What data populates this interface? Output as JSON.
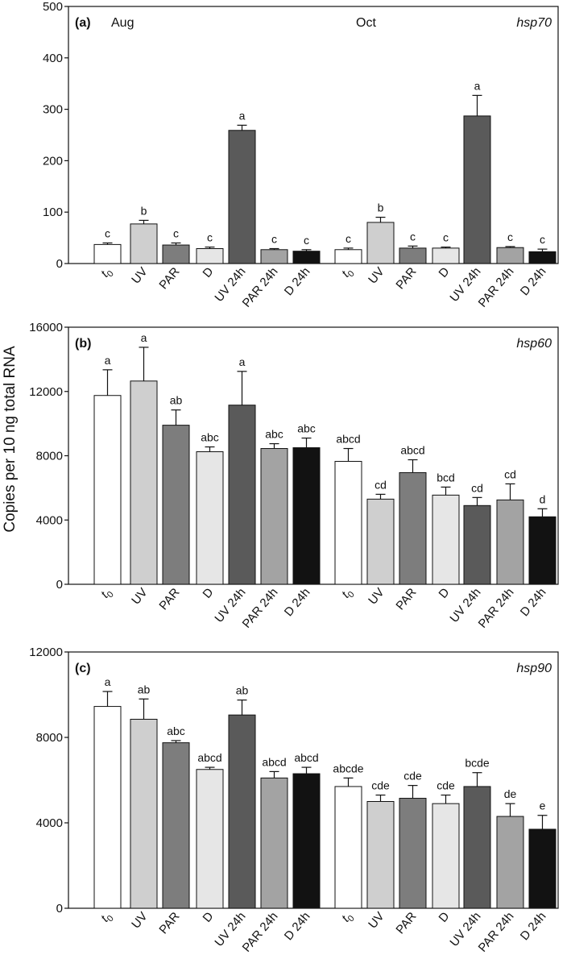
{
  "ylabel": "Copies per 10 ng total RNA",
  "colors": {
    "t0": "#ffffff",
    "UV": "#cfcfcf",
    "PAR": "#7d7d7d",
    "D": "#e6e6e6",
    "UV 24h": "#5a5a5a",
    "PAR 24h": "#a3a3a3",
    "D 24h": "#121212"
  },
  "chart_data": [
    {
      "type": "bar",
      "panel": "(a)",
      "gene": "hsp70",
      "months": [
        "Aug",
        "Oct"
      ],
      "categories": [
        "t0",
        "UV",
        "PAR",
        "D",
        "UV 24h",
        "PAR 24h",
        "D 24h",
        "t0",
        "UV",
        "PAR",
        "D",
        "UV 24h",
        "PAR 24h",
        "D 24h"
      ],
      "values": [
        37,
        77,
        36,
        29,
        259,
        27,
        24,
        27,
        80,
        30,
        30,
        287,
        31,
        23
      ],
      "errors": [
        3,
        7,
        4,
        3,
        10,
        2,
        3,
        3,
        10,
        4,
        2,
        40,
        2,
        5
      ],
      "letters": [
        "c",
        "b",
        "c",
        "c",
        "a",
        "c",
        "c",
        "c",
        "b",
        "c",
        "c",
        "a",
        "c",
        "c"
      ],
      "ylim": [
        0,
        500
      ],
      "yticks": [
        0,
        100,
        200,
        300,
        400,
        500
      ]
    },
    {
      "type": "bar",
      "panel": "(b)",
      "gene": "hsp60",
      "categories": [
        "t0",
        "UV",
        "PAR",
        "D",
        "UV 24h",
        "PAR 24h",
        "D 24h",
        "t0",
        "UV",
        "PAR",
        "D",
        "UV 24h",
        "PAR 24h",
        "D 24h"
      ],
      "values": [
        11750,
        12650,
        9900,
        8250,
        11150,
        8450,
        8500,
        7650,
        5300,
        6950,
        5550,
        4900,
        5250,
        4200
      ],
      "errors": [
        1600,
        2100,
        950,
        300,
        2100,
        300,
        600,
        800,
        300,
        800,
        500,
        500,
        1000,
        500
      ],
      "letters": [
        "a",
        "a",
        "ab",
        "abc",
        "a",
        "abc",
        "abc",
        "abcd",
        "cd",
        "abcd",
        "bcd",
        "cd",
        "cd",
        "d"
      ],
      "ylim": [
        0,
        16000
      ],
      "yticks": [
        0,
        4000,
        8000,
        12000,
        16000
      ]
    },
    {
      "type": "bar",
      "panel": "(c)",
      "gene": "hsp90",
      "categories": [
        "t0",
        "UV",
        "PAR",
        "D",
        "UV 24h",
        "PAR 24h",
        "D 24h",
        "t0",
        "UV",
        "PAR",
        "D",
        "UV 24h",
        "PAR 24h",
        "D 24h"
      ],
      "values": [
        9450,
        8850,
        7750,
        6500,
        9050,
        6100,
        6300,
        5700,
        5000,
        5150,
        4900,
        5700,
        4300,
        3700
      ],
      "errors": [
        700,
        950,
        100,
        100,
        700,
        300,
        300,
        400,
        300,
        600,
        400,
        650,
        600,
        650
      ],
      "letters": [
        "a",
        "ab",
        "abc",
        "abcd",
        "ab",
        "abcd",
        "abcd",
        "abcde",
        "cde",
        "cde",
        "cde",
        "bcde",
        "de",
        "e"
      ],
      "ylim": [
        0,
        12000
      ],
      "yticks": [
        0,
        4000,
        8000,
        12000
      ]
    }
  ]
}
